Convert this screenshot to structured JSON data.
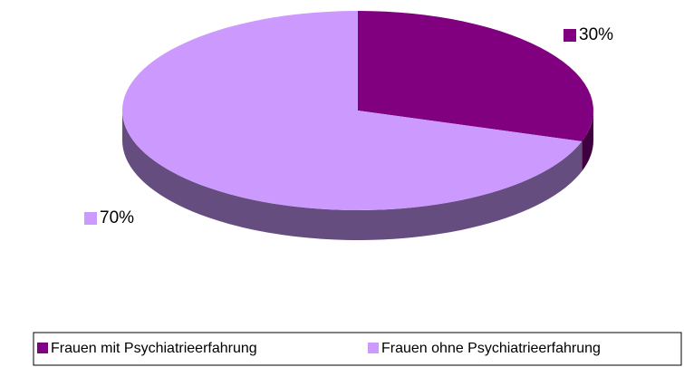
{
  "chart_data": {
    "type": "pie",
    "categories": [
      "Frauen mit Psychiatrieerfahrung",
      "Frauen ohne Psychiatrieerfahrung"
    ],
    "values": [
      30,
      70
    ],
    "value_labels": [
      "30%",
      "70%"
    ],
    "colors": [
      "#800080",
      "#cc99ff"
    ],
    "legend": "bottom"
  }
}
